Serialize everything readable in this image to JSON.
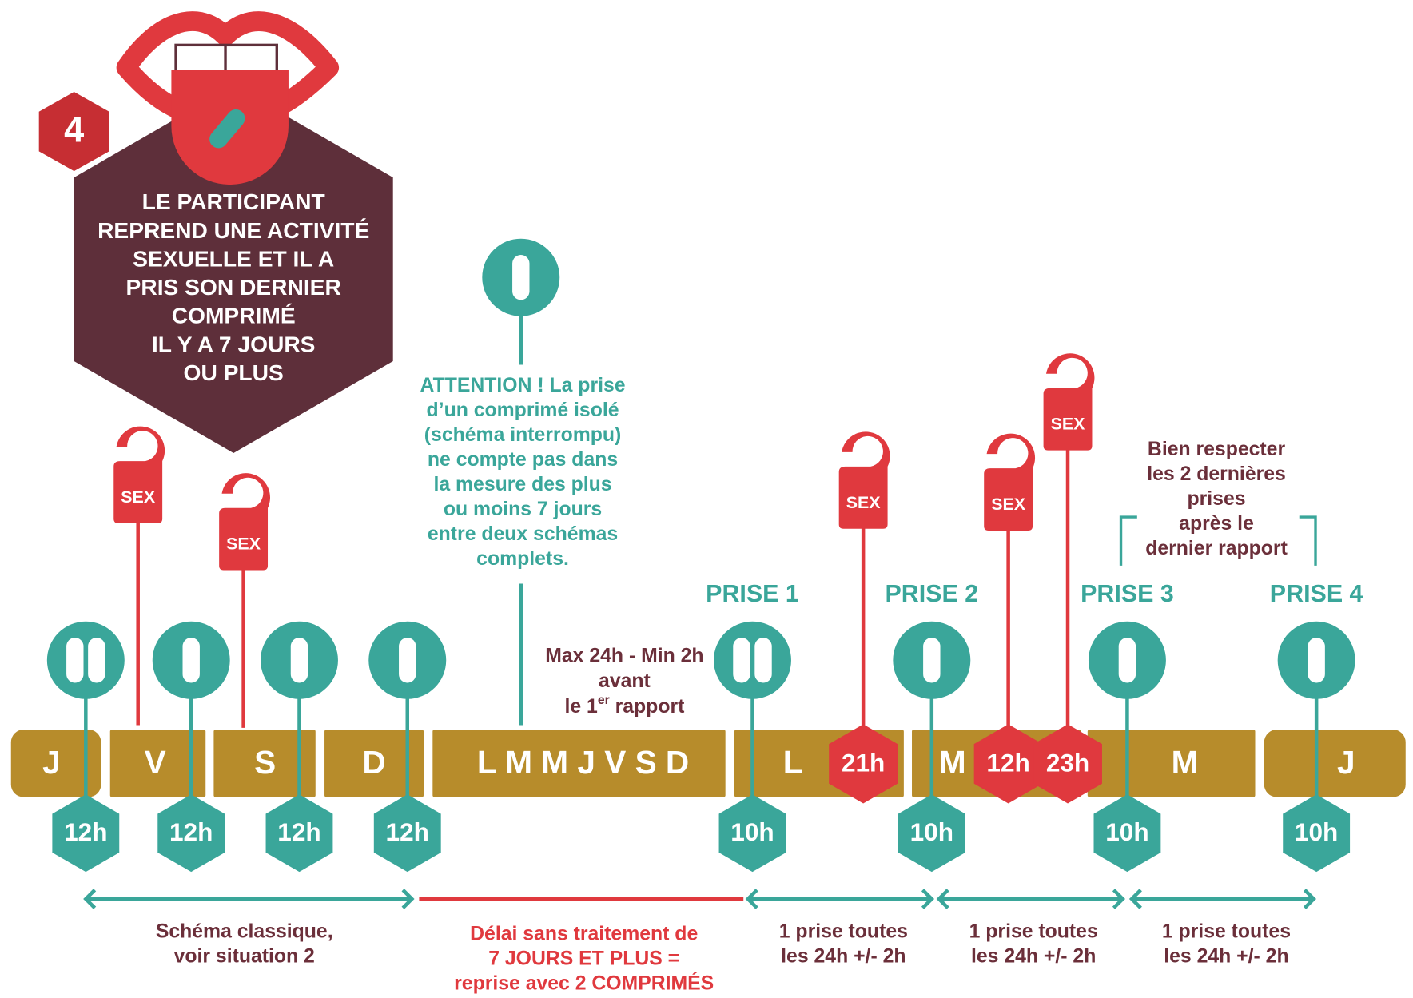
{
  "step": "4",
  "title_lines": [
    "LE PARTICIPANT",
    "REPREND UNE ACTIVITÉ",
    "SEXUELLE ET IL A",
    "PRIS SON DERNIER",
    "COMPRIMÉ",
    "IL Y A 7 JOURS",
    "OU PLUS"
  ],
  "attention": {
    "pills": 1,
    "lines": [
      "ATTENTION ! La prise",
      "d’un comprimé isolé",
      "(schéma interrompu)",
      "ne compte pas dans",
      "la mesure des plus",
      "ou moins 7 jours",
      "entre deux schémas",
      "complets."
    ]
  },
  "note_before": {
    "lines": [
      "Max 24h - Min 2h",
      "avant"
    ],
    "last_prefix": "le 1",
    "last_sup": "er",
    "last_suffix": " rapport"
  },
  "note_last": [
    "Bien respecter",
    "les 2 dernières",
    "prises",
    "après le",
    "dernier rapport"
  ],
  "days": [
    "J",
    "V",
    "S",
    "D",
    "L M M J V S D",
    "L",
    "M",
    "M",
    "J"
  ],
  "doses": [
    {
      "pills": 2,
      "time": "12h"
    },
    {
      "pills": 1,
      "time": "12h"
    },
    {
      "pills": 1,
      "time": "12h"
    },
    {
      "pills": 1,
      "time": "12h"
    },
    {
      "pills": 2,
      "time": "10h"
    },
    {
      "pills": 1,
      "time": "10h"
    },
    {
      "pills": 1,
      "time": "10h"
    },
    {
      "pills": 1,
      "time": "10h"
    }
  ],
  "prises": [
    "PRISE 1",
    "PRISE 2",
    "PRISE 3",
    "PRISE 4"
  ],
  "sex_tags": [
    {
      "label": "SEX"
    },
    {
      "label": "SEX"
    },
    {
      "label": "SEX",
      "time": "21h"
    },
    {
      "label": "SEX",
      "time": "12h"
    },
    {
      "label": "SEX",
      "time": "23h"
    }
  ],
  "periods": [
    {
      "lines": [
        "Schéma classique,",
        "voir situation 2"
      ]
    },
    {
      "lines": [
        "Délai sans traitement de",
        "7 JOURS ET PLUS =",
        "reprise avec 2 COMPRIMÉS"
      ]
    },
    {
      "lines": [
        "1 prise toutes",
        "les 24h +/- 2h"
      ]
    },
    {
      "lines": [
        "1 prise toutes",
        "les 24h +/- 2h"
      ]
    },
    {
      "lines": [
        "1 prise toutes",
        "les 24h +/- 2h"
      ]
    }
  ]
}
